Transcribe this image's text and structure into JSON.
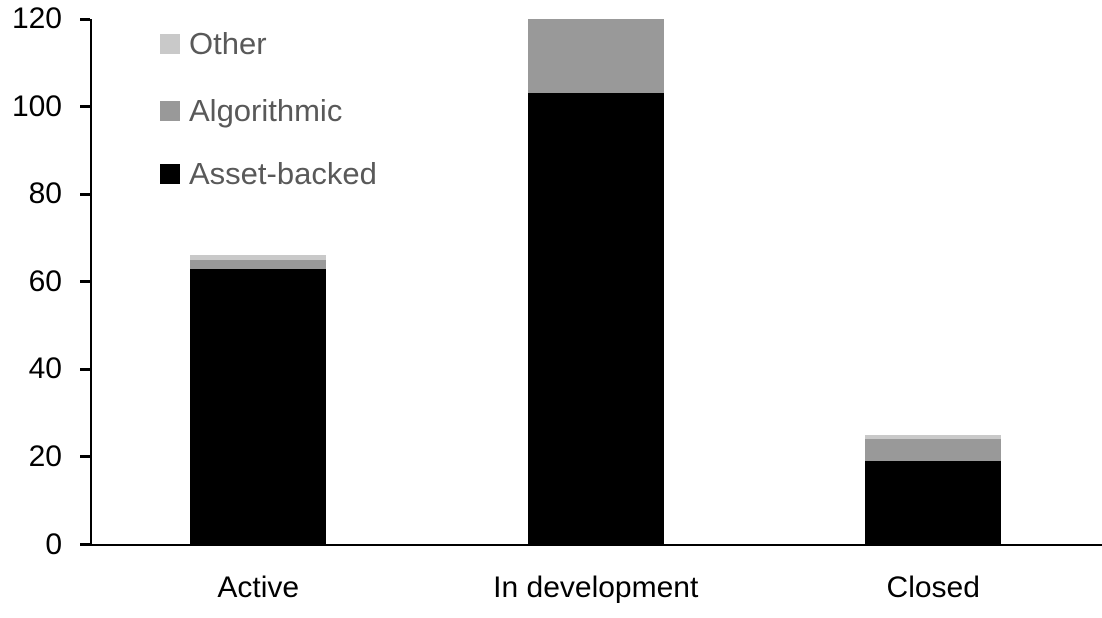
{
  "chart_data": {
    "type": "bar",
    "stacked": true,
    "title": "",
    "xlabel": "",
    "ylabel": "",
    "categories": [
      "Active",
      "In development",
      "Closed"
    ],
    "series": [
      {
        "name": "Asset-backed",
        "color": "#000000",
        "values": [
          63,
          103,
          19
        ]
      },
      {
        "name": "Algorithmic",
        "color": "#999999",
        "values": [
          2,
          17,
          5
        ]
      },
      {
        "name": "Other",
        "color": "#c9c9c9",
        "values": [
          1,
          0,
          1
        ]
      }
    ],
    "totals": [
      66,
      120,
      25
    ],
    "ylim": [
      0,
      120
    ],
    "yticks": [
      0,
      20,
      40,
      60,
      80,
      100,
      120
    ],
    "grid": false,
    "legend_position": "top-left",
    "legend_order": [
      "Other",
      "Algorithmic",
      "Asset-backed"
    ]
  },
  "colors": {
    "axis": "#000000",
    "axis_label_text": "#000000",
    "category_label_text": "#000000",
    "legend_text": "#595959",
    "background": "#ffffff"
  }
}
